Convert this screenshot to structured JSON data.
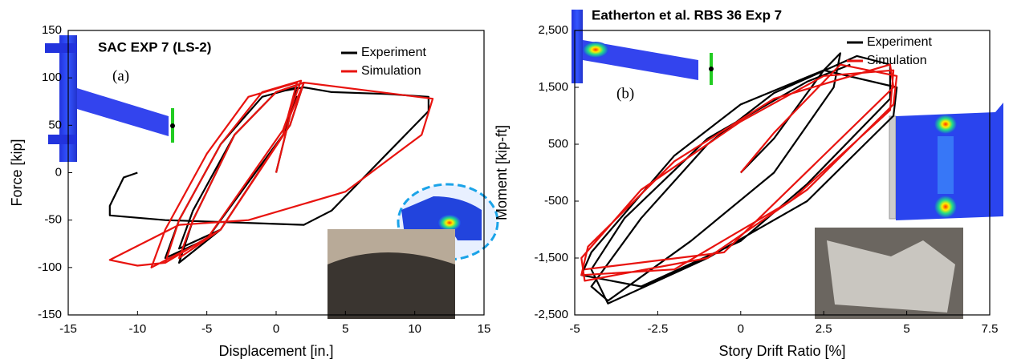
{
  "chart_data": [
    {
      "type": "line",
      "title": "SAC EXP 7 (LS-2)",
      "label": "(a)",
      "x_label": "Displacement [in.]",
      "y_label": "Force [kip]",
      "xlim": [
        -15,
        15
      ],
      "xticks": [
        -15,
        -10,
        -5,
        0,
        5,
        10,
        15
      ],
      "ylim": [
        -150,
        150
      ],
      "yticks": [
        -150,
        -100,
        -50,
        0,
        50,
        100,
        150
      ],
      "grid": false,
      "legend": "upper right",
      "series": [
        {
          "name": "Experiment",
          "color": "#000000",
          "x": [
            0,
            1,
            1.5,
            0.5,
            -4,
            -7,
            -6,
            -3,
            0,
            2,
            1,
            -5,
            -8,
            -7,
            -4,
            -1,
            1.5,
            0.5,
            -4,
            -7,
            -6,
            -3,
            0,
            2,
            4,
            8,
            11,
            11,
            8,
            4,
            2,
            -4,
            -8,
            -12,
            -12,
            -11,
            -10
          ],
          "values": [
            0,
            60,
            80,
            40,
            -60,
            -80,
            -40,
            40,
            85,
            95,
            50,
            -70,
            -90,
            -50,
            30,
            80,
            90,
            40,
            -60,
            -95,
            -50,
            40,
            85,
            90,
            85,
            83,
            80,
            65,
            20,
            -40,
            -55,
            -52,
            -50,
            -45,
            -35,
            -5,
            0
          ]
        },
        {
          "name": "Simulation",
          "color": "#e8130f",
          "x": [
            0,
            1,
            2,
            1,
            -4,
            -8,
            -7,
            -4,
            -1,
            1.8,
            0.5,
            -5,
            -9,
            -8,
            -5,
            -2,
            1.5,
            0.5,
            -4,
            -7,
            -6,
            -3,
            0,
            2,
            11.3,
            10.5,
            5,
            -2,
            -7,
            -12,
            -10,
            -8
          ],
          "values": [
            0,
            60,
            95,
            50,
            -60,
            -95,
            -50,
            30,
            85,
            97,
            45,
            -70,
            -100,
            -60,
            20,
            80,
            95,
            40,
            -60,
            -90,
            -50,
            40,
            85,
            95,
            78,
            40,
            -20,
            -50,
            -55,
            -92,
            -98,
            -95
          ]
        }
      ]
    },
    {
      "type": "line",
      "title": "Eatherton et al. RBS 36 Exp 7",
      "label": "(b)",
      "x_label": "Story Drift Ratio [%]",
      "y_label": "Moment [kip-ft]",
      "xlim": [
        -5,
        7.5
      ],
      "xticks": [
        -5,
        -2.5,
        0,
        2.5,
        5,
        7.5
      ],
      "ylim": [
        -2500,
        2500
      ],
      "yticks": [
        {
          "value": -2500,
          "label": "-2,500"
        },
        {
          "value": -1500,
          "label": "-1,500"
        },
        -500,
        500,
        {
          "value": 1500,
          "label": "1,500"
        },
        {
          "value": 2500,
          "label": "2,500"
        }
      ],
      "grid": false,
      "legend": "upper right",
      "series": [
        {
          "name": "Experiment",
          "color": "#000000",
          "x": [
            0,
            1,
            2.5,
            3,
            2.8,
            1,
            -1.5,
            -4,
            -4.5,
            -3,
            -1,
            1,
            3.5,
            4.5,
            4.5,
            2,
            0,
            -3,
            -4.8,
            -4.5,
            -2,
            0,
            2.5,
            4.7,
            4.6,
            2,
            -1,
            -4,
            -4.5,
            -3.5,
            -1,
            2,
            3.3
          ],
          "values": [
            0,
            600,
            1800,
            2100,
            1500,
            0,
            -1200,
            -2250,
            -2000,
            -800,
            500,
            1400,
            2050,
            1900,
            1300,
            -200,
            -1200,
            -2000,
            -1800,
            -1400,
            300,
            1200,
            1800,
            1500,
            1000,
            -500,
            -1500,
            -2300,
            -1700,
            -800,
            600,
            1600,
            1900
          ]
        },
        {
          "name": "Simulation",
          "color": "#e8130f",
          "x": [
            0,
            1,
            3,
            4.7,
            4.6,
            2,
            -1,
            -4.7,
            -4.8,
            -3,
            0,
            2.5,
            4.6,
            4.5,
            1.5,
            -2,
            -4.8,
            -4.6,
            -2,
            1,
            4.5,
            4.6,
            -0.5,
            -4.7
          ],
          "values": [
            0,
            700,
            1900,
            1700,
            1200,
            -300,
            -1500,
            -1900,
            -1500,
            -300,
            900,
            1700,
            1800,
            1100,
            -500,
            -1700,
            -1800,
            -1300,
            200,
            1300,
            1900,
            1500,
            -1400,
            -1700
          ]
        }
      ]
    }
  ]
}
